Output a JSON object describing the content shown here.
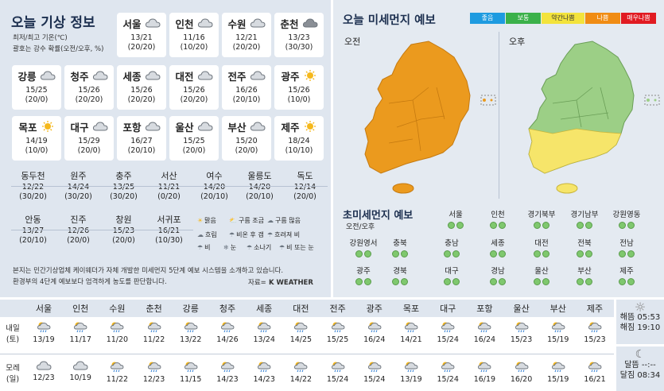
{
  "left": {
    "title": "오늘 기상 정보",
    "sub1": "최저/최고 기온(℃)",
    "sub2": "괄호는 강수 확률(오전/오후, %)",
    "cards": [
      {
        "name": "서울",
        "temp": "13/21",
        "pop": "(20/20)",
        "icon": "cloud"
      },
      {
        "name": "인천",
        "temp": "11/16",
        "pop": "(10/20)",
        "icon": "cloud"
      },
      {
        "name": "수원",
        "temp": "12/21",
        "pop": "(20/20)",
        "icon": "cloud"
      },
      {
        "name": "춘천",
        "temp": "13/23",
        "pop": "(30/30)",
        "icon": "cloud-dark"
      },
      {
        "name": "강릉",
        "temp": "15/25",
        "pop": "(20/0)",
        "icon": "cloud"
      },
      {
        "name": "청주",
        "temp": "15/26",
        "pop": "(20/20)",
        "icon": "cloud"
      },
      {
        "name": "세종",
        "temp": "15/26",
        "pop": "(20/20)",
        "icon": "cloud"
      },
      {
        "name": "대전",
        "temp": "15/26",
        "pop": "(20/20)",
        "icon": "cloud"
      },
      {
        "name": "전주",
        "temp": "16/26",
        "pop": "(20/10)",
        "icon": "cloud"
      },
      {
        "name": "광주",
        "temp": "15/26",
        "pop": "(10/0)",
        "icon": "sun"
      },
      {
        "name": "목포",
        "temp": "14/19",
        "pop": "(10/0)",
        "icon": "sun"
      },
      {
        "name": "대구",
        "temp": "15/29",
        "pop": "(20/0)",
        "icon": "cloud"
      },
      {
        "name": "포항",
        "temp": "16/27",
        "pop": "(20/10)",
        "icon": "cloud"
      },
      {
        "name": "울산",
        "temp": "15/25",
        "pop": "(20/0)",
        "icon": "cloud"
      },
      {
        "name": "부산",
        "temp": "15/20",
        "pop": "(20/0)",
        "icon": "cloud"
      },
      {
        "name": "제주",
        "temp": "18/24",
        "pop": "(10/10)",
        "icon": "sun"
      }
    ],
    "small": [
      {
        "name": "동두천",
        "temp": "12/22",
        "pop": "(30/20)"
      },
      {
        "name": "원주",
        "temp": "14/24",
        "pop": "(30/20)"
      },
      {
        "name": "충주",
        "temp": "13/25",
        "pop": "(30/20)"
      },
      {
        "name": "서산",
        "temp": "11/21",
        "pop": "(0/20)"
      },
      {
        "name": "여수",
        "temp": "14/20",
        "pop": "(20/10)"
      },
      {
        "name": "울릉도",
        "temp": "14/20",
        "pop": "(20/10)"
      },
      {
        "name": "독도",
        "temp": "12/14",
        "pop": "(20/0)"
      },
      {
        "name": "안동",
        "temp": "13/27",
        "pop": "(20/10)"
      },
      {
        "name": "진주",
        "temp": "12/26",
        "pop": "(20/0)"
      },
      {
        "name": "창원",
        "temp": "15/23",
        "pop": "(20/0)"
      },
      {
        "name": "서귀포",
        "temp": "16/21",
        "pop": "(10/30)"
      }
    ],
    "legend": [
      "맑음",
      "구름 조금",
      "구름 많음",
      "흐림",
      "비온 후 갬",
      "흐려져 비",
      "비",
      "눈",
      "소나기",
      "비 또는 눈"
    ],
    "note1": "본지는 민간기상업체 케이웨더가 자체 개발한 미세먼지 5단계 예보 시스템을 소개하고 있습니다.",
    "note2": "환경부의 4단계 예보보다 엄격하게 농도를 판단합니다.",
    "source": "자료=",
    "brand": "K WEATHER"
  },
  "right": {
    "title": "오늘 미세먼지 예보",
    "am": "오전",
    "pm": "오후",
    "levels": [
      {
        "label": "좋음",
        "color": "#1e9be0"
      },
      {
        "label": "보통",
        "color": "#3bb14a"
      },
      {
        "label": "약간나쁨",
        "color": "#f3e33c"
      },
      {
        "label": "나쁨",
        "color": "#f08c14"
      },
      {
        "label": "매우나쁨",
        "color": "#e11b22"
      }
    ],
    "ultra_title": "초미세먼지 예보",
    "ultra_sub": "오전/오후",
    "regions": [
      "서울",
      "인천",
      "경기북부",
      "경기남부",
      "강원영동",
      "강원영서",
      "충북",
      "충남",
      "세종",
      "대전",
      "전북",
      "전남",
      "광주",
      "경북",
      "대구",
      "경남",
      "울산",
      "부산",
      "제주"
    ]
  },
  "bottom": {
    "cities": [
      "서울",
      "인천",
      "수원",
      "춘천",
      "강릉",
      "청주",
      "세종",
      "대전",
      "전주",
      "광주",
      "목포",
      "대구",
      "포항",
      "울산",
      "부산",
      "제주"
    ],
    "row1_label": "내일",
    "row1_day": "(토)",
    "row1": [
      "13/19",
      "11/17",
      "11/20",
      "11/22",
      "13/22",
      "14/26",
      "13/24",
      "14/25",
      "15/25",
      "16/24",
      "14/21",
      "15/24",
      "16/24",
      "15/23",
      "15/19",
      "15/23"
    ],
    "row2_label": "모레",
    "row2_day": "(일)",
    "row2": [
      "12/23",
      "10/19",
      "11/22",
      "12/23",
      "11/15",
      "14/23",
      "14/23",
      "14/22",
      "15/24",
      "15/24",
      "13/19",
      "15/24",
      "16/19",
      "16/20",
      "15/19",
      "16/21"
    ],
    "sunrise": "해뜸 05:53",
    "sunset": "해짐 19:10",
    "moonrise": "달뜸 --:--",
    "moonset": "달짐 08:34"
  }
}
